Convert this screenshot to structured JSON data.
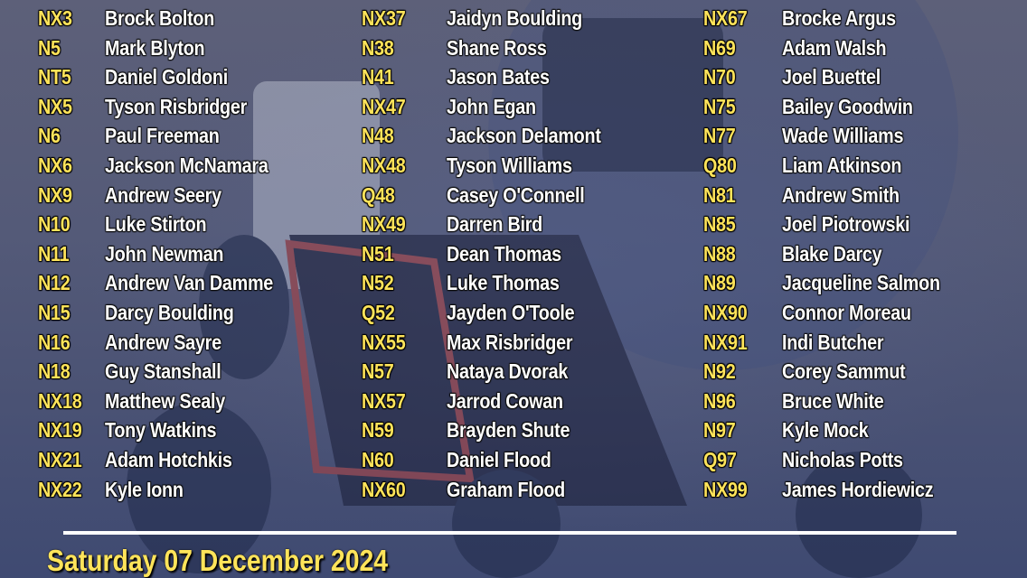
{
  "columns": [
    {
      "entries": [
        {
          "number": "NX3",
          "name": "Brock Bolton"
        },
        {
          "number": "N5",
          "name": "Mark Blyton"
        },
        {
          "number": "NT5",
          "name": "Daniel Goldoni"
        },
        {
          "number": "NX5",
          "name": "Tyson Risbridger"
        },
        {
          "number": "N6",
          "name": "Paul Freeman"
        },
        {
          "number": "NX6",
          "name": "Jackson McNamara"
        },
        {
          "number": "NX9",
          "name": "Andrew Seery"
        },
        {
          "number": "N10",
          "name": "Luke Stirton"
        },
        {
          "number": "N11",
          "name": "John Newman"
        },
        {
          "number": "N12",
          "name": "Andrew Van Damme"
        },
        {
          "number": "N15",
          "name": "Darcy Boulding"
        },
        {
          "number": "N16",
          "name": "Andrew Sayre"
        },
        {
          "number": "N18",
          "name": "Guy Stanshall"
        },
        {
          "number": "NX18",
          "name": "Matthew Sealy"
        },
        {
          "number": "NX19",
          "name": "Tony Watkins"
        },
        {
          "number": "NX21",
          "name": "Adam Hotchkis"
        },
        {
          "number": "NX22",
          "name": "Kyle Ionn"
        }
      ]
    },
    {
      "entries": [
        {
          "number": "NX37",
          "name": "Jaidyn Boulding"
        },
        {
          "number": "N38",
          "name": "Shane Ross"
        },
        {
          "number": "N41",
          "name": "Jason Bates"
        },
        {
          "number": "NX47",
          "name": "John Egan"
        },
        {
          "number": "N48",
          "name": "Jackson Delamont"
        },
        {
          "number": "NX48",
          "name": "Tyson Williams"
        },
        {
          "number": "Q48",
          "name": "Casey O'Connell"
        },
        {
          "number": "NX49",
          "name": "Darren Bird"
        },
        {
          "number": "N51",
          "name": "Dean Thomas"
        },
        {
          "number": "N52",
          "name": "Luke Thomas"
        },
        {
          "number": "Q52",
          "name": "Jayden O'Toole"
        },
        {
          "number": "NX55",
          "name": "Max Risbridger"
        },
        {
          "number": "N57",
          "name": "Nataya Dvorak"
        },
        {
          "number": "NX57",
          "name": "Jarrod Cowan"
        },
        {
          "number": "N59",
          "name": "Brayden Shute"
        },
        {
          "number": "N60",
          "name": "Daniel Flood"
        },
        {
          "number": "NX60",
          "name": "Graham Flood"
        }
      ]
    },
    {
      "entries": [
        {
          "number": "NX67",
          "name": "Brocke Argus"
        },
        {
          "number": "N69",
          "name": "Adam Walsh"
        },
        {
          "number": "N70",
          "name": "Joel Buettel"
        },
        {
          "number": "N75",
          "name": "Bailey Goodwin"
        },
        {
          "number": "N77",
          "name": "Wade Williams"
        },
        {
          "number": "Q80",
          "name": "Liam Atkinson"
        },
        {
          "number": "N81",
          "name": "Andrew Smith"
        },
        {
          "number": "N85",
          "name": "Joel Piotrowski"
        },
        {
          "number": "N88",
          "name": "Blake Darcy"
        },
        {
          "number": "N89",
          "name": "Jacqueline Salmon"
        },
        {
          "number": "NX90",
          "name": "Connor Moreau"
        },
        {
          "number": "NX91",
          "name": "Indi Butcher"
        },
        {
          "number": "N92",
          "name": "Corey Sammut"
        },
        {
          "number": "N96",
          "name": "Bruce White"
        },
        {
          "number": "N97",
          "name": "Kyle Mock"
        },
        {
          "number": "Q97",
          "name": "Nicholas Potts"
        },
        {
          "number": "NX99",
          "name": "James Hordiewicz"
        }
      ]
    }
  ],
  "event_date": "Saturday 07 December 2024",
  "colors": {
    "number": "#ffe45a",
    "name": "#ffffff",
    "background": "#4a5274"
  }
}
